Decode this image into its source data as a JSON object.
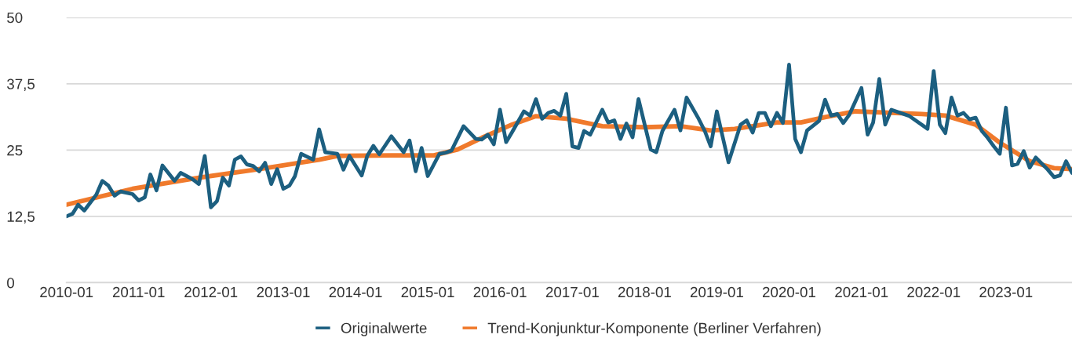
{
  "chart_data": {
    "type": "line",
    "x": [
      "2010-01",
      "2010-02",
      "2010-03",
      "2010-04",
      "2010-06",
      "2010-07",
      "2010-08",
      "2010-09",
      "2010-10",
      "2010-12",
      "2011-01",
      "2011-02",
      "2011-03",
      "2011-04",
      "2011-05",
      "2011-07",
      "2011-08",
      "2011-10",
      "2011-11",
      "2011-12",
      "2012-01",
      "2012-02",
      "2012-03",
      "2012-04",
      "2012-05",
      "2012-06",
      "2012-07",
      "2012-08",
      "2012-09",
      "2012-10",
      "2012-11",
      "2012-12",
      "2013-01",
      "2013-02",
      "2013-03",
      "2013-04",
      "2013-06",
      "2013-07",
      "2013-08",
      "2013-10",
      "2013-11",
      "2013-12",
      "2014-02",
      "2014-03",
      "2014-04",
      "2014-05",
      "2014-07",
      "2014-09",
      "2014-10",
      "2014-11",
      "2014-12",
      "2015-01",
      "2015-03",
      "2015-04",
      "2015-05",
      "2015-07",
      "2015-09",
      "2015-10",
      "2015-11",
      "2015-12",
      "2016-01",
      "2016-02",
      "2016-03",
      "2016-05",
      "2016-06",
      "2016-07",
      "2016-08",
      "2016-09",
      "2016-10",
      "2016-11",
      "2016-12",
      "2017-01",
      "2017-02",
      "2017-03",
      "2017-04",
      "2017-06",
      "2017-07",
      "2017-08",
      "2017-09",
      "2017-10",
      "2017-11",
      "2017-12",
      "2018-02",
      "2018-03",
      "2018-04",
      "2018-06",
      "2018-07",
      "2018-08",
      "2018-10",
      "2018-11",
      "2018-12",
      "2019-01",
      "2019-03",
      "2019-05",
      "2019-06",
      "2019-07",
      "2019-08",
      "2019-09",
      "2019-10",
      "2019-11",
      "2019-12",
      "2020-01",
      "2020-02",
      "2020-03",
      "2020-04",
      "2020-06",
      "2020-07",
      "2020-08",
      "2020-09",
      "2020-10",
      "2020-11",
      "2021-01",
      "2021-02",
      "2021-03",
      "2021-04",
      "2021-05",
      "2021-06",
      "2021-09",
      "2021-12",
      "2022-01",
      "2022-02",
      "2022-03",
      "2022-04",
      "2022-05",
      "2022-06",
      "2022-07",
      "2022-08",
      "2022-09",
      "2022-10",
      "2022-11",
      "2022-12",
      "2023-01",
      "2023-02",
      "2023-03",
      "2023-04",
      "2023-05",
      "2023-06",
      "2023-08",
      "2023-09",
      "2023-10",
      "2023-11",
      "2023-12"
    ],
    "series": [
      {
        "name": "Originalwerte",
        "color": "#1c5f80",
        "values": [
          12.5,
          13.0,
          14.7,
          13.6,
          16.6,
          19.2,
          18.3,
          16.4,
          17.2,
          16.7,
          15.5,
          16.1,
          20.4,
          17.4,
          22.1,
          19.2,
          20.7,
          19.5,
          18.6,
          23.9,
          14.2,
          15.4,
          19.8,
          18.3,
          23.2,
          23.8,
          22.3,
          22.0,
          21.0,
          22.6,
          18.6,
          21.4,
          17.7,
          18.3,
          20.1,
          24.3,
          23.2,
          28.9,
          24.6,
          24.3,
          21.3,
          23.9,
          20.2,
          23.9,
          25.8,
          24.2,
          27.6,
          24.6,
          26.8,
          21.0,
          25.4,
          20.1,
          24.3,
          24.5,
          24.9,
          29.5,
          27.1,
          27.0,
          27.9,
          26.1,
          32.6,
          26.5,
          28.3,
          32.3,
          31.5,
          34.6,
          30.9,
          32.0,
          32.4,
          31.5,
          35.6,
          25.7,
          25.4,
          28.6,
          27.9,
          32.6,
          30.2,
          30.6,
          27.1,
          30.0,
          27.4,
          34.6,
          25.1,
          24.6,
          28.6,
          32.6,
          28.7,
          34.9,
          30.9,
          28.6,
          25.7,
          32.3,
          22.7,
          29.8,
          30.6,
          28.3,
          32.0,
          32.0,
          29.5,
          32.0,
          30.1,
          41.1,
          27.1,
          24.6,
          28.7,
          30.5,
          34.5,
          31.5,
          31.8,
          30.1,
          31.7,
          36.7,
          27.9,
          30.2,
          38.4,
          29.8,
          32.6,
          31.4,
          29.0,
          39.9,
          29.8,
          28.2,
          34.9,
          31.5,
          32.0,
          30.8,
          31.1,
          28.6,
          27.3,
          25.7,
          24.3,
          33.0,
          22.1,
          22.4,
          24.8,
          21.7,
          23.6,
          21.3,
          19.9,
          20.2,
          22.9,
          20.7
        ]
      },
      {
        "name": "Trend-Konjunktur-Komponente (Berliner Verfahren)",
        "color": "#f07a2c",
        "x": [
          "2010-01",
          "2010-12",
          "2011-11",
          "2012-09",
          "2013-07",
          "2013-10",
          "2014-07",
          "2015-02",
          "2015-06",
          "2015-10",
          "2016-03",
          "2016-07",
          "2016-12",
          "2017-06",
          "2018-01",
          "2018-07",
          "2018-12",
          "2019-04",
          "2019-11",
          "2020-03",
          "2020-07",
          "2020-12",
          "2021-11",
          "2022-03",
          "2022-08",
          "2022-12",
          "2023-05",
          "2023-09",
          "2023-12"
        ],
        "values": [
          14.7,
          17.7,
          19.8,
          21.4,
          23.2,
          23.9,
          24.0,
          24.0,
          25.1,
          27.3,
          29.8,
          31.4,
          30.9,
          29.5,
          29.3,
          29.5,
          28.7,
          29.0,
          30.2,
          30.2,
          31.2,
          32.3,
          31.8,
          31.5,
          29.8,
          26.4,
          22.9,
          21.6,
          21.4
        ]
      }
    ],
    "xlim": [
      "2010-01",
      "2023-12"
    ],
    "xticks": [
      {
        "value": "2010-01",
        "label": "2010-01"
      },
      {
        "value": "2011-01",
        "label": "2011-01"
      },
      {
        "value": "2012-01",
        "label": "2012-01"
      },
      {
        "value": "2013-01",
        "label": "2013-01"
      },
      {
        "value": "2014-01",
        "label": "2014-01"
      },
      {
        "value": "2015-01",
        "label": "2015-01"
      },
      {
        "value": "2016-01",
        "label": "2016-01"
      },
      {
        "value": "2017-01",
        "label": "2017-01"
      },
      {
        "value": "2018-01",
        "label": "2018-01"
      },
      {
        "value": "2019-01",
        "label": "2019-01"
      },
      {
        "value": "2020-01",
        "label": "2020-01"
      },
      {
        "value": "2021-01",
        "label": "2021-01"
      },
      {
        "value": "2022-01",
        "label": "2022-01"
      },
      {
        "value": "2023-01",
        "label": "2023-01"
      }
    ],
    "ylim": [
      0,
      50
    ],
    "yticks": [
      0,
      {
        "value": 12.5,
        "label": "12,5"
      },
      25,
      {
        "value": 37.5,
        "label": "37,5"
      },
      50
    ],
    "grid": "y",
    "legend": "bottom",
    "marker": "none",
    "line_style": "solid"
  }
}
